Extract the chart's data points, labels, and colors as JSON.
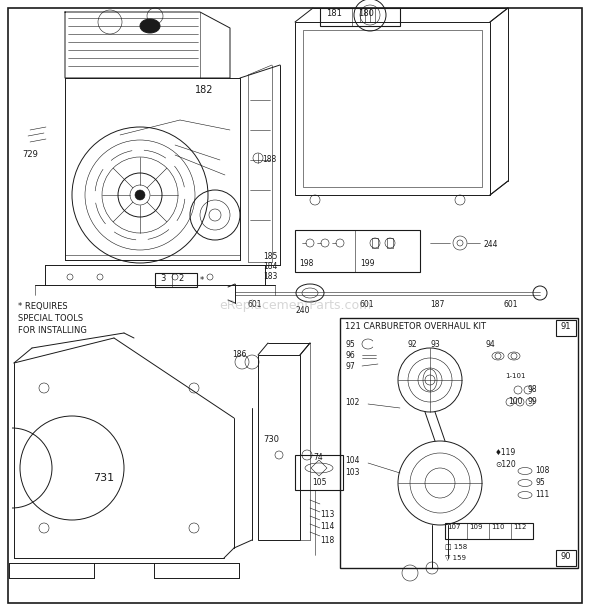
{
  "background_color": "#ffffff",
  "line_color": "#1a1a1a",
  "watermark_text": "eReplacementParts.com",
  "fig_w": 5.9,
  "fig_h": 6.11,
  "dpi": 100,
  "border_lw": 1.0,
  "main_lw": 0.7,
  "thin_lw": 0.4,
  "note_text": "* REQUIRES\nSPECIAL TOOLS\nFOR INSTALLING"
}
